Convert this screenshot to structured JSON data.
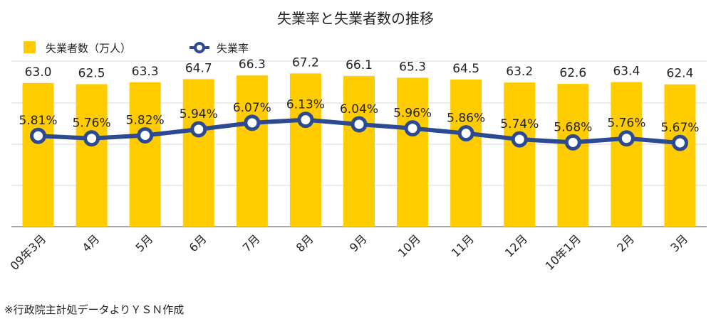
{
  "chart_data": {
    "type": "bar",
    "title": "失業率と失業者数の推移",
    "categories": [
      "09年3月",
      "4月",
      "5月",
      "6月",
      "7月",
      "8月",
      "9月",
      "10月",
      "11月",
      "12月",
      "10年1月",
      "2月",
      "3月"
    ],
    "series": [
      {
        "name": "失業者数（万人）",
        "type": "bar",
        "values": [
          63.0,
          62.5,
          63.3,
          64.7,
          66.3,
          67.2,
          66.1,
          65.3,
          64.5,
          63.2,
          62.6,
          63.4,
          62.4
        ],
        "labels": [
          "63.0",
          "62.5",
          "63.3",
          "64.7",
          "66.3",
          "67.2",
          "66.1",
          "65.3",
          "64.5",
          "63.2",
          "62.6",
          "63.4",
          "62.4"
        ]
      },
      {
        "name": "失業率",
        "type": "line",
        "values": [
          5.81,
          5.76,
          5.82,
          5.94,
          6.07,
          6.13,
          6.04,
          5.96,
          5.86,
          5.74,
          5.68,
          5.76,
          5.67
        ],
        "labels": [
          "5.81%",
          "5.76%",
          "5.82%",
          "5.94%",
          "6.07%",
          "6.13%",
          "6.04%",
          "5.96%",
          "5.86%",
          "5.74%",
          "5.68%",
          "5.76%",
          "5.67%"
        ]
      }
    ],
    "legend_position": "top-left",
    "grid": true,
    "colors": {
      "bar": "#FFCC00",
      "line": "#2B4A92",
      "grid": "#d9d9d9",
      "axis": "#888888"
    }
  },
  "note": "※行政院主計処データよりＹＳＮ作成"
}
